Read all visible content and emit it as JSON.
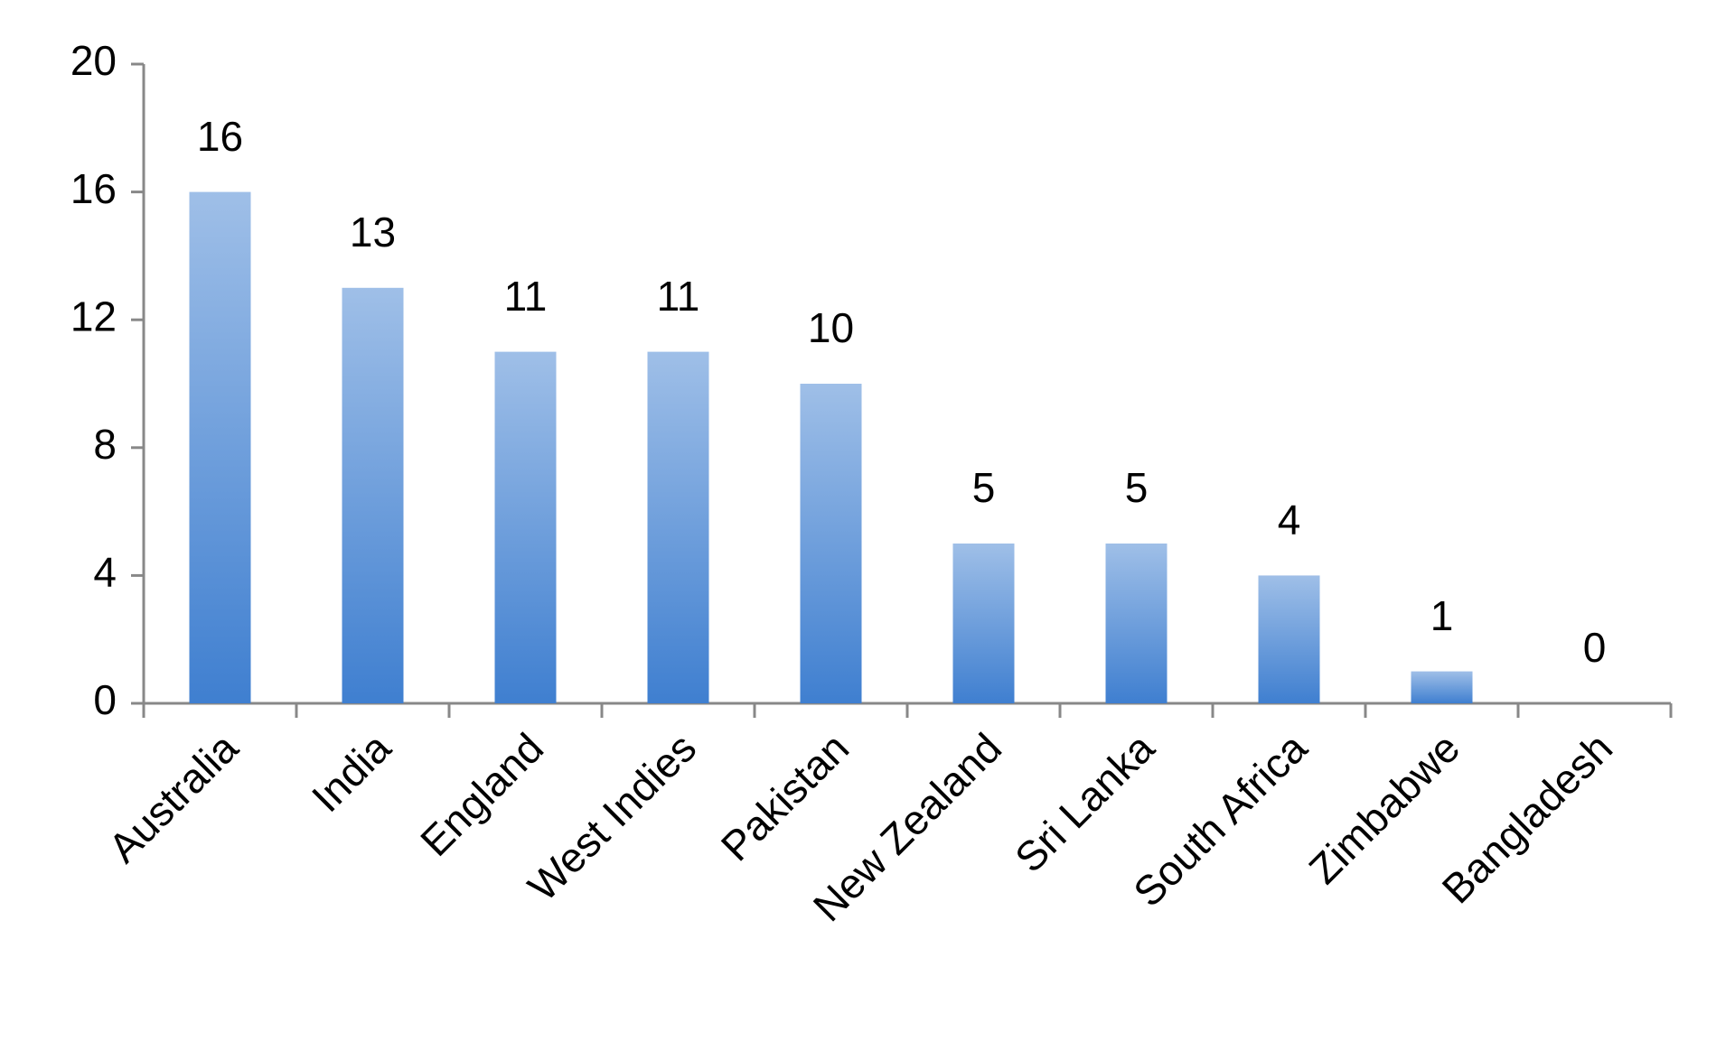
{
  "chart_data": {
    "type": "bar",
    "categories": [
      "Australia",
      "India",
      "England",
      "West Indies",
      "Pakistan",
      "New Zealand",
      "Sri Lanka",
      "South Africa",
      "Zimbabwe",
      "Bangladesh"
    ],
    "values": [
      16,
      13,
      11,
      11,
      10,
      5,
      5,
      4,
      1,
      0
    ],
    "color": "#3f7fd0",
    "ylim": [
      0,
      20
    ],
    "yticks": [
      0,
      4,
      8,
      12,
      16,
      20
    ]
  }
}
